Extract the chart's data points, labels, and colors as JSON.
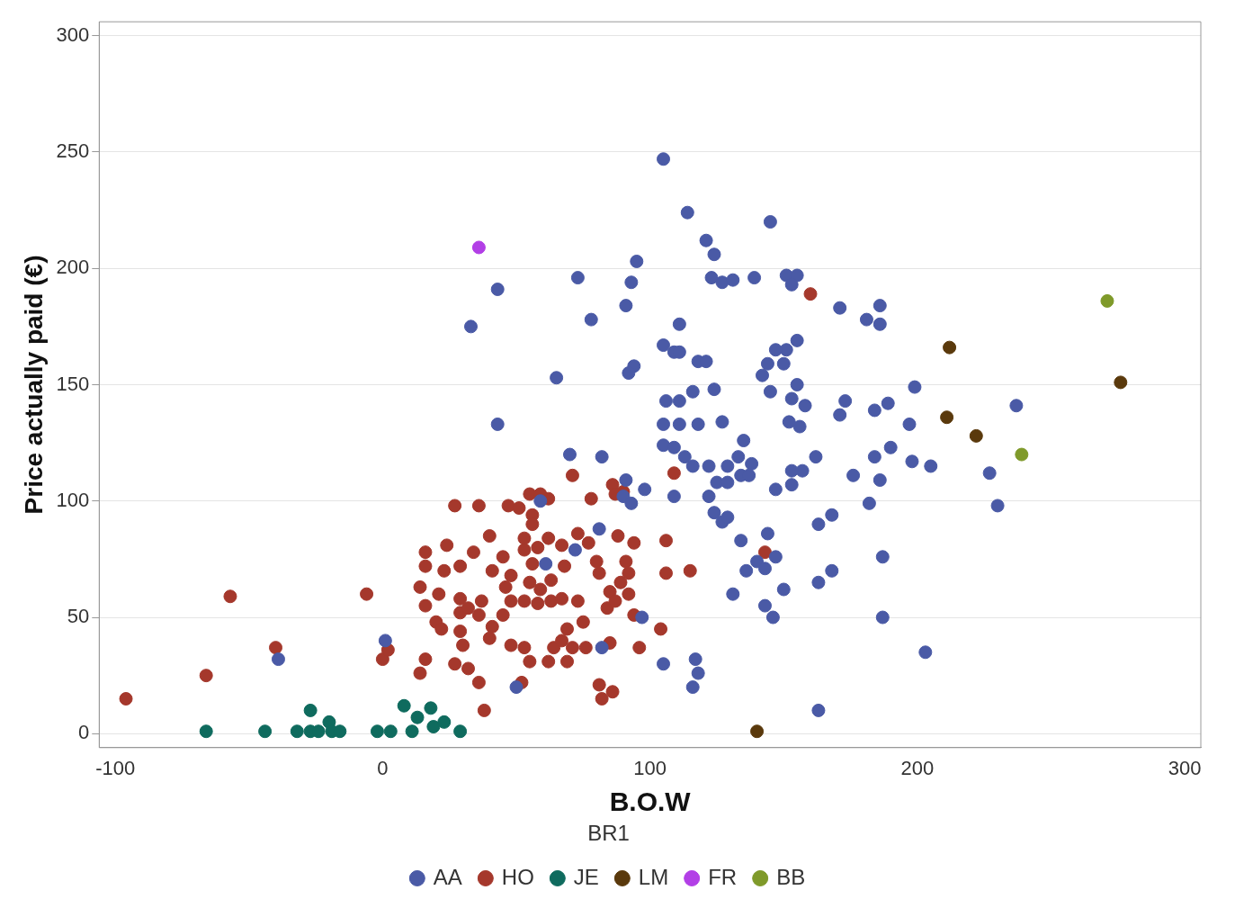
{
  "chart_data": {
    "type": "scatter",
    "xlabel": "B.O.W",
    "ylabel": "Price actually paid (€)",
    "legend_title": "BR1",
    "legend": "bottom",
    "grid": "y",
    "marker": "circle",
    "xlim": [
      -106,
      306
    ],
    "ylim": [
      -6,
      306
    ],
    "xticks": [
      -100,
      0,
      100,
      200,
      300
    ],
    "yticks": [
      0,
      50,
      100,
      150,
      200,
      250,
      300
    ],
    "series": [
      {
        "name": "AA",
        "color": "#4a5aa6",
        "x": [
          105,
          114,
          145,
          43,
          33,
          43,
          65,
          73,
          78,
          70,
          82,
          95,
          93,
          91,
          94,
          92,
          105,
          111,
          109,
          111,
          121,
          124,
          123,
          127,
          131,
          139,
          151,
          155,
          153,
          171,
          186,
          181,
          186,
          151,
          147,
          155,
          150,
          144,
          142,
          118,
          121,
          106,
          111,
          116,
          124,
          145,
          155,
          153,
          158,
          173,
          171,
          184,
          189,
          199,
          197,
          237,
          198,
          205,
          190,
          184,
          227,
          230,
          203,
          105,
          111,
          118,
          127,
          105,
          109,
          113,
          116,
          122,
          129,
          135,
          133,
          138,
          134,
          137,
          125,
          129,
          122,
          124,
          127,
          129,
          147,
          153,
          157,
          153,
          162,
          176,
          186,
          182,
          168,
          163,
          156,
          152,
          98,
          109,
          91,
          90,
          93,
          81,
          72,
          59,
          61,
          97,
          134,
          144,
          136,
          140,
          143,
          147,
          131,
          150,
          163,
          168,
          187,
          187,
          143,
          146,
          105,
          117,
          118,
          116,
          163,
          50,
          1,
          -39,
          82
        ],
        "values": [
          247,
          224,
          220,
          191,
          175,
          133,
          153,
          196,
          178,
          120,
          119,
          203,
          194,
          184,
          158,
          155,
          167,
          176,
          164,
          164,
          212,
          206,
          196,
          194,
          195,
          196,
          197,
          197,
          193,
          183,
          184,
          178,
          176,
          165,
          165,
          169,
          159,
          159,
          154,
          160,
          160,
          143,
          143,
          147,
          148,
          147,
          150,
          144,
          141,
          143,
          137,
          139,
          142,
          149,
          133,
          141,
          117,
          115,
          123,
          119,
          112,
          98,
          35,
          133,
          133,
          133,
          134,
          124,
          123,
          119,
          115,
          115,
          115,
          126,
          119,
          116,
          111,
          111,
          108,
          108,
          102,
          95,
          91,
          93,
          105,
          107,
          113,
          113,
          119,
          111,
          109,
          99,
          94,
          90,
          132,
          134,
          105,
          102,
          109,
          102,
          99,
          88,
          79,
          100,
          73,
          50,
          83,
          86,
          70,
          74,
          71,
          76,
          60,
          62,
          65,
          70,
          76,
          50,
          55,
          50,
          30,
          32,
          26,
          20,
          10,
          20,
          40,
          32,
          37
        ]
      },
      {
        "name": "HO",
        "color": "#a5382c",
        "x": [
          -96,
          -57,
          -66,
          -40,
          -6,
          0,
          2,
          14,
          16,
          14,
          16,
          16,
          21,
          16,
          20,
          22,
          24,
          23,
          27,
          36,
          27,
          30,
          32,
          36,
          38,
          29,
          34,
          29,
          29,
          29,
          32,
          37,
          36,
          40,
          41,
          45,
          40,
          45,
          41,
          46,
          48,
          48,
          48,
          53,
          55,
          52,
          47,
          51,
          55,
          59,
          56,
          53,
          53,
          58,
          56,
          55,
          59,
          53,
          58,
          63,
          67,
          73,
          63,
          68,
          62,
          67,
          73,
          77,
          64,
          67,
          62,
          69,
          71,
          76,
          75,
          69,
          80,
          81,
          85,
          89,
          92,
          92,
          91,
          88,
          94,
          84,
          87,
          94,
          104,
          96,
          85,
          81,
          82,
          86,
          71,
          78,
          86,
          90,
          87,
          109,
          106,
          106,
          115,
          143,
          160,
          56,
          62
        ],
        "values": [
          15,
          59,
          25,
          37,
          60,
          32,
          36,
          26,
          32,
          63,
          72,
          78,
          60,
          55,
          48,
          45,
          81,
          70,
          98,
          98,
          30,
          38,
          28,
          22,
          10,
          72,
          78,
          58,
          52,
          44,
          54,
          57,
          51,
          41,
          46,
          51,
          85,
          76,
          70,
          63,
          68,
          57,
          38,
          37,
          31,
          22,
          98,
          97,
          103,
          103,
          94,
          84,
          79,
          80,
          73,
          65,
          62,
          57,
          56,
          57,
          58,
          57,
          66,
          72,
          84,
          81,
          86,
          82,
          37,
          40,
          31,
          31,
          37,
          37,
          48,
          45,
          74,
          69,
          61,
          65,
          60,
          69,
          74,
          85,
          82,
          54,
          57,
          51,
          45,
          37,
          39,
          21,
          15,
          18,
          111,
          101,
          107,
          104,
          103,
          112,
          83,
          69,
          70,
          78,
          189,
          90,
          101
        ]
      },
      {
        "name": "JE",
        "color": "#0f6b5e",
        "x": [
          -66,
          -44,
          -32,
          -27,
          -27,
          -24,
          -20,
          -19,
          -16,
          -2,
          3,
          8,
          11,
          13,
          18,
          19,
          23,
          29
        ],
        "values": [
          1,
          1,
          1,
          10,
          1,
          1,
          5,
          1,
          1,
          1,
          1,
          12,
          1,
          7,
          11,
          3,
          5,
          1
        ]
      },
      {
        "name": "LM",
        "color": "#5a390c",
        "x": [
          140,
          212,
          211,
          222,
          276
        ],
        "values": [
          1,
          166,
          136,
          128,
          151
        ]
      },
      {
        "name": "FR",
        "color": "#b23fe6",
        "x": [
          36
        ],
        "values": [
          209
        ]
      },
      {
        "name": "BB",
        "color": "#7f9a2a",
        "x": [
          271,
          239
        ],
        "values": [
          186,
          120
        ]
      }
    ]
  }
}
